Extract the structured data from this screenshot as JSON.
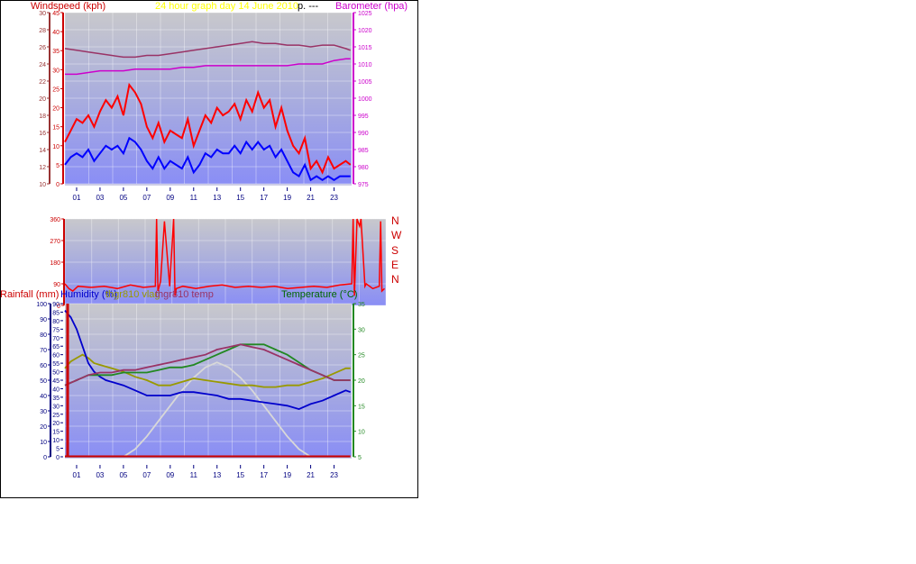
{
  "header": {
    "windspeed_label": "Windspeed (kph)",
    "title": "24 hour graph day   14 June 2010",
    "title_tail": "p.  ---",
    "barometer_label": "Barometer (hpa)"
  },
  "panel3_labels": {
    "rainfall": "Rainfall (mm)",
    "humidity": "Humidity (%)",
    "thgr810_vlag": "thgr810 vlag",
    "thgr810_temp": "thgr810 temp",
    "temperature": "Temperature (°C)"
  },
  "compass": [
    "N",
    "W",
    "S",
    "E",
    "N"
  ],
  "colors": {
    "wind_gust": "#ff0000",
    "wind_avg": "#0000ff",
    "barometer": "#cc00cc",
    "outdoor_temp": "#993366",
    "humidity": "#0000cc",
    "thgr810_vlag": "#999900",
    "thgr810_temp": "#228822",
    "solar": "#d8d8d8",
    "rain": "#cc0000"
  },
  "chart_data": [
    {
      "type": "line",
      "name_on_chart": "wind-and-barometer",
      "x_ticks": [
        "01",
        "03",
        "05",
        "07",
        "09",
        "11",
        "13",
        "15",
        "17",
        "19",
        "21",
        "23"
      ],
      "xlim": [
        0,
        24.5
      ],
      "axes": {
        "windspeed_left": {
          "ylim": [
            0,
            45
          ],
          "ticks": [
            "0",
            "5",
            "10",
            "15",
            "20",
            "25",
            "30",
            "35",
            "40",
            "45"
          ]
        },
        "windspeed_outer": {
          "ylim": [
            10,
            30
          ],
          "ticks": [
            "10",
            "12",
            "14",
            "16",
            "18",
            "20",
            "22",
            "24",
            "26",
            "28",
            "30"
          ]
        },
        "barometer_right": {
          "ylim": [
            975,
            1025
          ],
          "ticks": [
            "975",
            "980",
            "985",
            "990",
            "995",
            "1000",
            "1005",
            "1010",
            "1015",
            "1020",
            "1025"
          ]
        }
      },
      "series": [
        {
          "key": "barometer_magenta",
          "axis": "barometer_right",
          "x": [
            0,
            1,
            2,
            3,
            4,
            5,
            6,
            7,
            8,
            9,
            10,
            11,
            12,
            13,
            14,
            15,
            16,
            17,
            18,
            19,
            20,
            21,
            22,
            23,
            24,
            24.4
          ],
          "values": [
            1007,
            1007,
            1007.5,
            1008,
            1008,
            1008,
            1008.5,
            1008.5,
            1008.5,
            1008.5,
            1009,
            1009,
            1009.5,
            1009.5,
            1009.5,
            1009.5,
            1009.5,
            1009.5,
            1009.5,
            1009.5,
            1010,
            1010,
            1010,
            1011,
            1011.5,
            1011.5
          ]
        },
        {
          "key": "pressure_outdoor",
          "axis": "barometer_right",
          "x": [
            0,
            1,
            2,
            3,
            4,
            5,
            6,
            7,
            8,
            9,
            10,
            11,
            12,
            13,
            14,
            15,
            16,
            17,
            18,
            19,
            20,
            21,
            22,
            23,
            24,
            24.4
          ],
          "values": [
            1014.5,
            1014,
            1013.5,
            1013,
            1012.5,
            1012,
            1012,
            1012.5,
            1012.5,
            1013,
            1013.5,
            1014,
            1014.5,
            1015,
            1015.5,
            1016,
            1016.5,
            1016,
            1016,
            1015.5,
            1015.5,
            1015,
            1015.5,
            1015.5,
            1014.5,
            1014
          ]
        },
        {
          "key": "wind_gust",
          "axis": "windspeed_left",
          "x": [
            0,
            0.5,
            1,
            1.5,
            2,
            2.5,
            3,
            3.5,
            4,
            4.5,
            5,
            5.5,
            6,
            6.5,
            7,
            7.5,
            8,
            8.5,
            9,
            9.5,
            10,
            10.5,
            11,
            11.5,
            12,
            12.5,
            13,
            13.5,
            14,
            14.5,
            15,
            15.5,
            16,
            16.5,
            17,
            17.5,
            18,
            18.5,
            19,
            19.5,
            20,
            20.5,
            21,
            21.5,
            22,
            22.5,
            23,
            23.5,
            24,
            24.4
          ],
          "values": [
            11,
            14,
            17,
            16,
            18,
            15,
            19,
            22,
            20,
            23,
            18,
            26,
            24,
            21,
            15,
            12,
            16,
            11,
            14,
            13,
            12,
            17,
            10,
            14,
            18,
            16,
            20,
            18,
            19,
            21,
            17,
            22,
            19,
            24,
            20,
            22,
            15,
            20,
            14,
            10,
            8,
            12,
            4,
            6,
            3,
            7,
            4,
            5,
            6,
            5
          ]
        },
        {
          "key": "wind_avg",
          "axis": "windspeed_left",
          "x": [
            0,
            0.5,
            1,
            1.5,
            2,
            2.5,
            3,
            3.5,
            4,
            4.5,
            5,
            5.5,
            6,
            6.5,
            7,
            7.5,
            8,
            8.5,
            9,
            9.5,
            10,
            10.5,
            11,
            11.5,
            12,
            12.5,
            13,
            13.5,
            14,
            14.5,
            15,
            15.5,
            16,
            16.5,
            17,
            17.5,
            18,
            18.5,
            19,
            19.5,
            20,
            20.5,
            21,
            21.5,
            22,
            22.5,
            23,
            23.5,
            24,
            24.4
          ],
          "values": [
            5,
            7,
            8,
            7,
            9,
            6,
            8,
            10,
            9,
            10,
            8,
            12,
            11,
            9,
            6,
            4,
            7,
            4,
            6,
            5,
            4,
            7,
            3,
            5,
            8,
            7,
            9,
            8,
            8,
            10,
            8,
            11,
            9,
            11,
            9,
            10,
            7,
            9,
            6,
            3,
            2,
            5,
            1,
            2,
            1,
            2,
            1,
            2,
            2,
            2
          ]
        }
      ]
    },
    {
      "type": "line",
      "name_on_chart": "wind-direction",
      "x_ticks": [],
      "xlim": [
        0,
        24.5
      ],
      "ylim": [
        0,
        360
      ],
      "y_ticks": [
        "0",
        "90",
        "180",
        "270",
        "360"
      ],
      "series": [
        {
          "key": "direction",
          "x": [
            0,
            0.3,
            0.6,
            1,
            2,
            3,
            4,
            5,
            6,
            6.9,
            7,
            7.1,
            7.3,
            7.6,
            8,
            8.3,
            8.4,
            8.5,
            9,
            10,
            11,
            12,
            13,
            14,
            15,
            16,
            17,
            18,
            19,
            20,
            21,
            21.9,
            22,
            22.1,
            22.3,
            22.5,
            22.6,
            22.9,
            23,
            23.5,
            24,
            24.1,
            24.2,
            24.4
          ],
          "values": [
            90,
            70,
            60,
            80,
            75,
            80,
            70,
            85,
            75,
            80,
            360,
            60,
            100,
            350,
            80,
            360,
            40,
            70,
            80,
            70,
            80,
            85,
            75,
            80,
            75,
            80,
            70,
            75,
            80,
            75,
            85,
            90,
            360,
            40,
            360,
            330,
            360,
            80,
            90,
            70,
            80,
            350,
            60,
            70
          ]
        }
      ]
    },
    {
      "type": "line",
      "name_on_chart": "temperature-humidity-rain",
      "x_ticks": [
        "01",
        "03",
        "05",
        "07",
        "09",
        "11",
        "13",
        "15",
        "17",
        "19",
        "21",
        "23"
      ],
      "xlim": [
        0,
        24.5
      ],
      "axes": {
        "rainfall_outer": {
          "ylim": [
            0,
            100
          ],
          "ticks": [
            "0",
            "10",
            "20",
            "30",
            "40",
            "50",
            "60",
            "70",
            "80",
            "90",
            "100"
          ]
        },
        "humidity_left": {
          "ylim": [
            0,
            90
          ],
          "ticks": [
            "0",
            "5",
            "10",
            "15",
            "20",
            "25",
            "30",
            "35",
            "40",
            "45",
            "50",
            "55",
            "60",
            "65",
            "70",
            "75",
            "80",
            "85",
            "90"
          ]
        },
        "temperature_right": {
          "ylim": [
            5,
            35
          ],
          "ticks": [
            "5",
            "10",
            "15",
            "20",
            "25",
            "30",
            "35"
          ]
        }
      },
      "series": [
        {
          "key": "humidity",
          "axis": "humidity_left",
          "x": [
            0,
            0.5,
            1,
            1.5,
            2,
            2.5,
            3,
            3.5,
            4,
            5,
            6,
            7,
            8,
            9,
            10,
            11,
            12,
            13,
            14,
            15,
            16,
            17,
            18,
            19,
            20,
            21,
            22,
            23,
            24,
            24.4
          ],
          "values": [
            86,
            82,
            75,
            65,
            55,
            50,
            47,
            45,
            44,
            42,
            39,
            36,
            36,
            36,
            38,
            38,
            37,
            36,
            34,
            34,
            33,
            32,
            31,
            30,
            28,
            31,
            33,
            36,
            39,
            38
          ]
        },
        {
          "key": "thgr810_vlag",
          "axis": "humidity_left",
          "x": [
            0,
            0.5,
            1,
            1.5,
            2,
            2.5,
            3,
            3.5,
            4,
            5,
            6,
            7,
            8,
            9,
            10,
            11,
            12,
            13,
            14,
            15,
            16,
            17,
            18,
            19,
            20,
            21,
            22,
            23,
            24,
            24.4
          ],
          "values": [
            52,
            56,
            58,
            60,
            58,
            55,
            54,
            53,
            52,
            50,
            47,
            45,
            42,
            42,
            44,
            46,
            45,
            44,
            43,
            42,
            42,
            41,
            41,
            42,
            42,
            44,
            46,
            49,
            52,
            52
          ]
        },
        {
          "key": "thgr810_temp",
          "axis": "temperature_right",
          "x": [
            0,
            0.5,
            1,
            1.5,
            2,
            3,
            4,
            5,
            6,
            7,
            8,
            9,
            10,
            11,
            12,
            13,
            14,
            15,
            16,
            17,
            18,
            19,
            20,
            21,
            22,
            23,
            24,
            24.4
          ],
          "values": [
            19,
            19.5,
            20,
            20.5,
            21,
            21,
            21,
            21.5,
            21.5,
            21.5,
            22,
            22.5,
            22.5,
            23,
            24,
            25,
            26,
            27,
            27,
            27,
            26,
            25,
            23.5,
            22,
            21,
            20,
            20,
            20
          ]
        },
        {
          "key": "outdoor_temp",
          "axis": "temperature_right",
          "x": [
            0,
            0.5,
            1,
            1.5,
            2,
            3,
            4,
            5,
            6,
            7,
            8,
            9,
            10,
            11,
            12,
            13,
            14,
            15,
            16,
            17,
            18,
            19,
            20,
            21,
            22,
            23,
            24,
            24.4
          ],
          "values": [
            19,
            19.5,
            20,
            20.5,
            21,
            21.5,
            21.5,
            22,
            22,
            22.5,
            23,
            23.5,
            24,
            24.5,
            25,
            26,
            26.5,
            27,
            26.5,
            26,
            25,
            24,
            23,
            22,
            21,
            20,
            20,
            20
          ]
        },
        {
          "key": "solar",
          "axis": "temperature_right",
          "x": [
            5,
            6,
            7,
            8,
            9,
            10,
            11,
            12,
            13,
            14,
            15,
            16,
            17,
            18,
            19,
            20,
            21
          ],
          "values": [
            5,
            6.5,
            9,
            12,
            15,
            18,
            20.5,
            22.5,
            23.5,
            22.5,
            20.5,
            18,
            15,
            12,
            9,
            6.5,
            5
          ]
        },
        {
          "key": "rain",
          "axis": "rainfall_outer",
          "x": [
            0,
            24.4
          ],
          "values": [
            0,
            0
          ]
        }
      ]
    }
  ]
}
